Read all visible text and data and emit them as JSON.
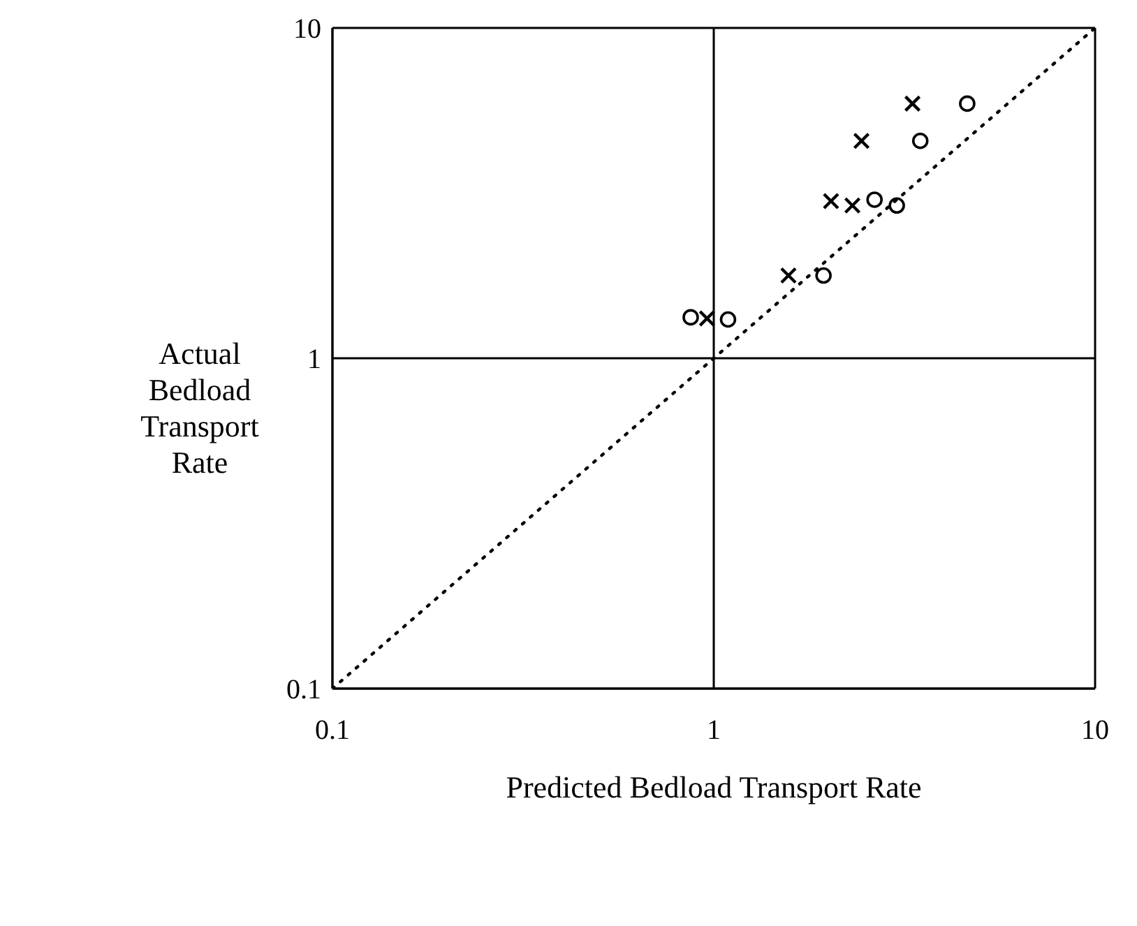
{
  "chart_data": {
    "type": "scatter",
    "xlabel": "Predicted Bedload Transport Rate",
    "ylabel": "Actual Bedload Transport Rate",
    "log": "xy",
    "grid": true,
    "xlim": [
      0.1,
      10
    ],
    "ylim": [
      0.1,
      10
    ],
    "xticks": [
      0.1,
      1,
      10
    ],
    "yticks": [
      0.1,
      1,
      10
    ],
    "series": [
      {
        "type": "scatter",
        "marker": "cross",
        "color": "#000000",
        "x": [
          3.32,
          2.44,
          2.03,
          2.31,
          1.57,
          0.96
        ],
        "values": [
          5.9,
          4.55,
          2.99,
          2.9,
          1.78,
          1.32
        ]
      },
      {
        "type": "scatter",
        "marker": "circle",
        "color": "#000000",
        "x": [
          4.62,
          3.48,
          2.64,
          3.02,
          1.94,
          0.87,
          1.09
        ],
        "values": [
          5.9,
          4.55,
          3.02,
          2.9,
          1.78,
          1.33,
          1.31
        ]
      },
      {
        "type": "line",
        "line_style": "dotted",
        "marker": "none",
        "color": "#000000",
        "x": [
          0.1,
          10
        ],
        "values": [
          0.1,
          10
        ]
      }
    ]
  }
}
